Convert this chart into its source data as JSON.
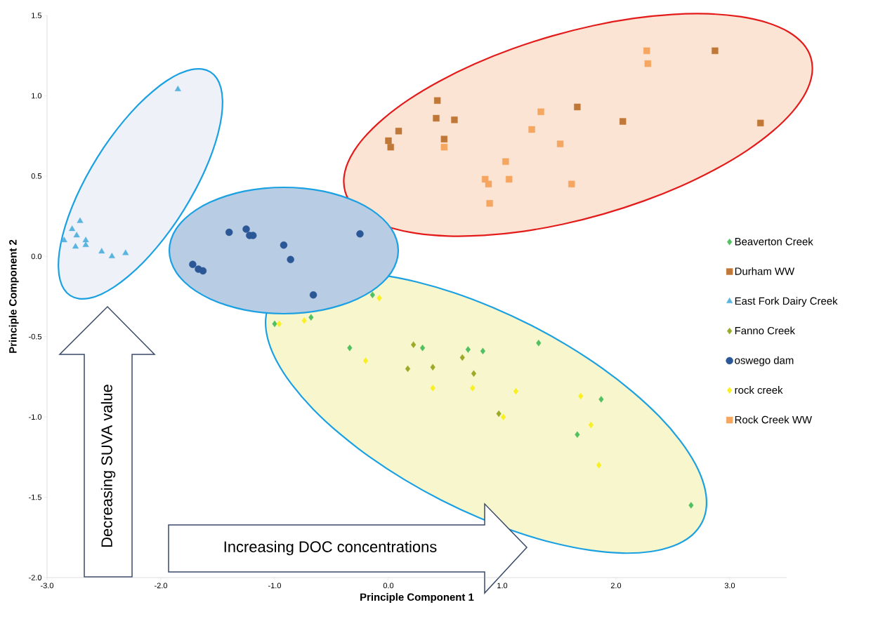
{
  "chart_data": {
    "type": "scatter",
    "xlabel": "Principle Component 1",
    "ylabel": "Principle Component 2",
    "xlim": [
      -3,
      3.5
    ],
    "ylim": [
      -2,
      1.5
    ],
    "xticks": [
      {
        "value": -3,
        "label": "-3.0"
      },
      {
        "value": -2,
        "label": "-2.0"
      },
      {
        "value": -1,
        "label": "-1.0"
      },
      {
        "value": 0,
        "label": "0.0"
      },
      {
        "value": 1,
        "label": "1.0"
      },
      {
        "value": 2,
        "label": "2.0"
      },
      {
        "value": 3,
        "label": "3.0"
      }
    ],
    "yticks": [
      {
        "value": -2,
        "label": "-2.0"
      },
      {
        "value": -1.5,
        "label": "-1.5"
      },
      {
        "value": -1,
        "label": "-1.0"
      },
      {
        "value": -0.5,
        "label": "-0.5"
      },
      {
        "value": 0,
        "label": "0.0"
      },
      {
        "value": 0.5,
        "label": "0.5"
      },
      {
        "value": 1,
        "label": "1.0"
      },
      {
        "value": 1.5,
        "label": "1.5"
      }
    ],
    "legend": "right",
    "annotations": [
      "Decreasing SUVA value",
      "Increasing DOC concentrations"
    ],
    "series": [
      {
        "name": "Beaverton Creek",
        "color": "#50c060",
        "marker": "diamond",
        "x": [
          -0.14,
          -1.0,
          -0.68,
          -0.34,
          0.3,
          0.7,
          0.83,
          1.32,
          1.87,
          1.66,
          2.66
        ],
        "values": [
          -0.24,
          -0.42,
          -0.38,
          -0.57,
          -0.57,
          -0.58,
          -0.59,
          -0.54,
          -0.89,
          -1.11,
          -1.55
        ]
      },
      {
        "name": "Durham WW",
        "color": "#c07838",
        "marker": "square",
        "x": [
          0.43,
          0.42,
          0.58,
          0.09,
          0.0,
          0.02,
          0.49,
          1.66,
          2.06,
          2.87,
          3.27
        ],
        "values": [
          0.97,
          0.86,
          0.85,
          0.78,
          0.72,
          0.68,
          0.73,
          0.93,
          0.84,
          1.28,
          0.83
        ]
      },
      {
        "name": "East Fork Dairy Creek",
        "color": "#5ab4e0",
        "marker": "triangle",
        "x": [
          -1.85,
          -2.85,
          -2.78,
          -2.71,
          -2.74,
          -2.75,
          -2.66,
          -2.66,
          -2.52,
          -2.43,
          -2.31
        ],
        "values": [
          1.04,
          0.1,
          0.17,
          0.22,
          0.13,
          0.06,
          0.1,
          0.07,
          0.03,
          0.0,
          0.02
        ]
      },
      {
        "name": "Fanno Creek",
        "color": "#9aaa28",
        "marker": "diamond",
        "x": [
          0.22,
          0.17,
          0.39,
          0.65,
          0.75,
          0.97
        ],
        "values": [
          -0.55,
          -0.7,
          -0.69,
          -0.63,
          -0.73,
          -0.98
        ]
      },
      {
        "name": "oswego dam",
        "color": "#2b5797",
        "marker": "circle",
        "x": [
          -1.4,
          -1.25,
          -1.22,
          -1.19,
          -0.92,
          -0.86,
          -0.25,
          -0.66,
          -1.72,
          -1.67,
          -1.63
        ],
        "values": [
          0.15,
          0.17,
          0.13,
          0.13,
          0.07,
          -0.02,
          0.14,
          -0.24,
          -0.05,
          -0.08,
          -0.09
        ]
      },
      {
        "name": "rock creek",
        "color": "#f8f020",
        "marker": "diamond",
        "x": [
          -0.08,
          -0.96,
          -0.74,
          -0.2,
          0.39,
          0.74,
          1.12,
          1.69,
          1.01,
          1.78,
          1.85
        ],
        "values": [
          -0.26,
          -0.42,
          -0.4,
          -0.65,
          -0.82,
          -0.82,
          -0.84,
          -0.87,
          -1.0,
          -1.05,
          -1.3
        ]
      },
      {
        "name": "Rock Creek WW",
        "color": "#f5a660",
        "marker": "square",
        "x": [
          2.27,
          2.28,
          1.34,
          1.26,
          1.51,
          0.49,
          1.03,
          0.85,
          0.88,
          1.06,
          1.61,
          0.89
        ],
        "values": [
          1.28,
          1.2,
          0.9,
          0.79,
          0.7,
          0.68,
          0.59,
          0.48,
          0.45,
          0.48,
          0.45,
          0.33
        ]
      }
    ]
  }
}
